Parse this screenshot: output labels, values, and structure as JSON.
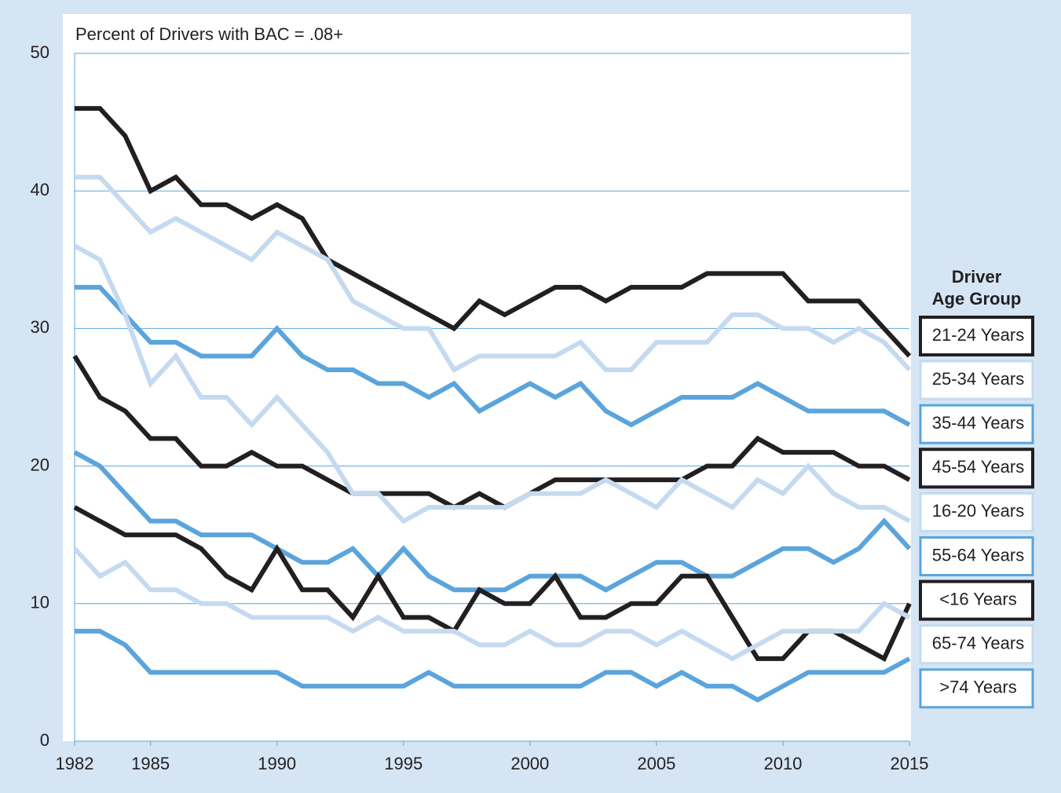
{
  "chart_data": {
    "type": "line",
    "y_label": "Percent of Drivers with BAC = .08+",
    "legend_title": [
      "Driver",
      "Age Group"
    ],
    "x": [
      1982,
      1983,
      1984,
      1985,
      1986,
      1987,
      1988,
      1989,
      1990,
      1991,
      1992,
      1993,
      1994,
      1995,
      1996,
      1997,
      1998,
      1999,
      2000,
      2001,
      2002,
      2003,
      2004,
      2005,
      2006,
      2007,
      2008,
      2009,
      2010,
      2011,
      2012,
      2013,
      2014,
      2015
    ],
    "xlim": [
      1982,
      2015
    ],
    "xticks": [
      1982,
      1985,
      1990,
      1995,
      2000,
      2005,
      2010,
      2015
    ],
    "ylim": [
      0,
      50
    ],
    "yticks": [
      0,
      10,
      20,
      30,
      40,
      50
    ],
    "grid": true,
    "legend": "right",
    "series": [
      {
        "name": "21-24 Years",
        "color": "#231f20",
        "values": [
          46,
          46,
          44,
          40,
          41,
          39,
          39,
          38,
          39,
          38,
          35,
          34,
          33,
          32,
          31,
          30,
          32,
          31,
          32,
          33,
          33,
          32,
          33,
          33,
          33,
          34,
          34,
          34,
          34,
          32,
          32,
          32,
          30,
          28
        ]
      },
      {
        "name": "25-34 Years",
        "color": "#c5daf0",
        "values": [
          41,
          41,
          39,
          37,
          38,
          37,
          36,
          35,
          37,
          36,
          35,
          32,
          31,
          30,
          30,
          27,
          28,
          28,
          28,
          28,
          29,
          27,
          27,
          29,
          29,
          29,
          31,
          31,
          30,
          30,
          29,
          30,
          29,
          27
        ]
      },
      {
        "name": "35-44 Years",
        "color": "#5ba4dc",
        "values": [
          33,
          33,
          31,
          29,
          29,
          28,
          28,
          28,
          30,
          28,
          27,
          27,
          26,
          26,
          25,
          26,
          24,
          25,
          26,
          25,
          26,
          24,
          23,
          24,
          25,
          25,
          25,
          26,
          25,
          24,
          24,
          24,
          24,
          23
        ]
      },
      {
        "name": "45-54 Years",
        "color": "#231f20",
        "values": [
          28,
          25,
          24,
          22,
          22,
          20,
          20,
          21,
          20,
          20,
          19,
          18,
          18,
          18,
          18,
          17,
          18,
          17,
          18,
          19,
          19,
          19,
          19,
          19,
          19,
          20,
          20,
          22,
          21,
          21,
          21,
          20,
          20,
          19
        ]
      },
      {
        "name": "16-20 Years",
        "color": "#c5daf0",
        "values": [
          36,
          35,
          31,
          26,
          28,
          25,
          25,
          23,
          25,
          23,
          21,
          18,
          18,
          16,
          17,
          17,
          17,
          17,
          18,
          18,
          18,
          19,
          18,
          17,
          19,
          18,
          17,
          19,
          18,
          20,
          18,
          17,
          17,
          16
        ]
      },
      {
        "name": "55-64 Years",
        "color": "#5ba4dc",
        "values": [
          21,
          20,
          18,
          16,
          16,
          15,
          15,
          15,
          14,
          13,
          13,
          14,
          12,
          14,
          12,
          11,
          11,
          11,
          12,
          12,
          12,
          11,
          12,
          13,
          13,
          12,
          12,
          13,
          14,
          14,
          13,
          14,
          16,
          14
        ]
      },
      {
        "name": "<16 Years",
        "color": "#231f20",
        "values": [
          17,
          16,
          15,
          15,
          15,
          14,
          12,
          11,
          14,
          11,
          11,
          9,
          12,
          9,
          9,
          8,
          11,
          10,
          10,
          12,
          9,
          9,
          10,
          10,
          12,
          12,
          9,
          6,
          6,
          8,
          8,
          7,
          6,
          10
        ]
      },
      {
        "name": "65-74 Years",
        "color": "#c5daf0",
        "values": [
          14,
          12,
          13,
          11,
          11,
          10,
          10,
          9,
          9,
          9,
          9,
          8,
          9,
          8,
          8,
          8,
          7,
          7,
          8,
          7,
          7,
          8,
          8,
          7,
          8,
          7,
          6,
          7,
          8,
          8,
          8,
          8,
          10,
          9
        ]
      },
      {
        "name": ">74 Years",
        "color": "#5ba4dc",
        "values": [
          8,
          8,
          7,
          5,
          5,
          5,
          5,
          5,
          5,
          4,
          4,
          4,
          4,
          4,
          5,
          4,
          4,
          4,
          4,
          4,
          4,
          5,
          5,
          4,
          5,
          4,
          4,
          3,
          4,
          5,
          5,
          5,
          5,
          6
        ]
      }
    ]
  }
}
